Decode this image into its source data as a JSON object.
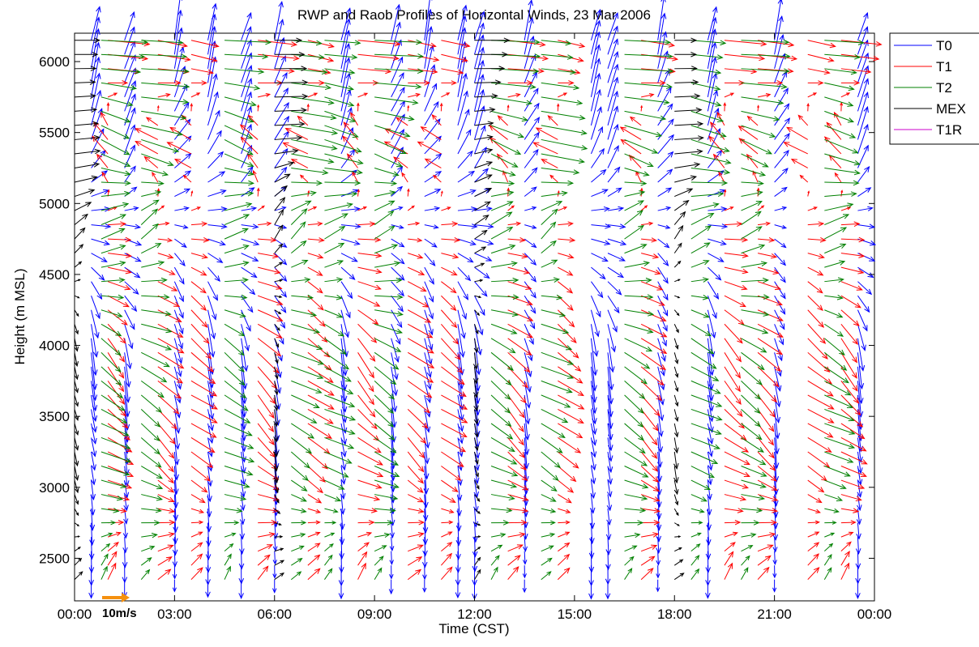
{
  "chart_data": {
    "type": "quiver",
    "title": "RWP and Raob Profiles of Horizontal Winds, 23 Mar 2006",
    "xlabel": "Time (CST)",
    "ylabel": "Height (m MSL)",
    "xlim_hours": [
      0,
      24
    ],
    "ylim": [
      2200,
      6200
    ],
    "x_ticks": [
      {
        "hour": 0,
        "label": "00:00"
      },
      {
        "hour": 3,
        "label": "03:00"
      },
      {
        "hour": 6,
        "label": "06:00"
      },
      {
        "hour": 9,
        "label": "09:00"
      },
      {
        "hour": 12,
        "label": "12:00"
      },
      {
        "hour": 15,
        "label": "15:00"
      },
      {
        "hour": 18,
        "label": "18:00"
      },
      {
        "hour": 21,
        "label": "21:00"
      },
      {
        "hour": 24,
        "label": "00:00"
      }
    ],
    "y_ticks": [
      2500,
      3000,
      3500,
      4000,
      4500,
      5000,
      5500,
      6000
    ],
    "grid": false,
    "legend_position": "outside-top-right",
    "scale_arrow": {
      "label": "10m/s",
      "speed_ms": 10,
      "color": "#f5900f"
    },
    "series": [
      {
        "name": "T0",
        "color": "#0000ff",
        "hours": [
          0.5,
          1.5,
          3.0,
          4.0,
          5.0,
          6.0,
          8.0,
          9.5,
          10.5,
          11.5,
          12.0,
          13.5,
          15.5,
          16.0,
          17.5,
          19.0,
          21.0,
          23.5
        ],
        "profile": [
          {
            "h": 2400,
            "u": 0,
            "v": -6
          },
          {
            "h": 3200,
            "u": 1,
            "v": -9
          },
          {
            "h": 4000,
            "u": 2,
            "v": -12
          },
          {
            "h": 4800,
            "u": 6,
            "v": -2
          },
          {
            "h": 5400,
            "u": 5,
            "v": 10
          },
          {
            "h": 6000,
            "u": 3,
            "v": 14
          }
        ]
      },
      {
        "name": "T1",
        "color": "#ff0000",
        "hours": [
          1.0,
          2.5,
          3.5,
          5.5,
          7.0,
          8.5,
          10.0,
          11.0,
          13.0,
          14.5,
          17.0,
          19.5,
          20.5,
          22.0,
          23.0
        ],
        "profile": [
          {
            "h": 2400,
            "u": 4,
            "v": 5
          },
          {
            "h": 3200,
            "u": 8,
            "v": -6
          },
          {
            "h": 4000,
            "u": 8,
            "v": -8
          },
          {
            "h": 4800,
            "u": 7,
            "v": 0
          },
          {
            "h": 5400,
            "u": -9,
            "v": 6
          },
          {
            "h": 6000,
            "u": 13,
            "v": -2
          }
        ]
      },
      {
        "name": "T2",
        "color": "#008000",
        "hours": [
          0.8,
          2.0,
          4.5,
          6.5,
          7.5,
          9.0,
          12.5,
          14.0,
          16.5,
          18.5,
          20.0,
          22.5
        ],
        "profile": [
          {
            "h": 2400,
            "u": 3,
            "v": 4
          },
          {
            "h": 3200,
            "u": 9,
            "v": -5
          },
          {
            "h": 4000,
            "u": 10,
            "v": -6
          },
          {
            "h": 4800,
            "u": 7,
            "v": 6
          },
          {
            "h": 5400,
            "u": 14,
            "v": -5
          },
          {
            "h": 6000,
            "u": 15,
            "v": -1
          }
        ]
      },
      {
        "name": "MEX",
        "color": "#000000",
        "hours": [
          0.0,
          6.0,
          12.0,
          18.0
        ],
        "profile": [
          {
            "h": 2400,
            "u": 3,
            "v": 3
          },
          {
            "h": 3200,
            "u": 1,
            "v": -6
          },
          {
            "h": 4000,
            "u": 1,
            "v": -5
          },
          {
            "h": 4800,
            "u": 4,
            "v": 5
          },
          {
            "h": 5400,
            "u": 9,
            "v": 1
          },
          {
            "h": 6000,
            "u": 11,
            "v": 0
          }
        ]
      },
      {
        "name": "T1R",
        "color": "#cc00cc",
        "hours": [],
        "profile": []
      }
    ]
  }
}
